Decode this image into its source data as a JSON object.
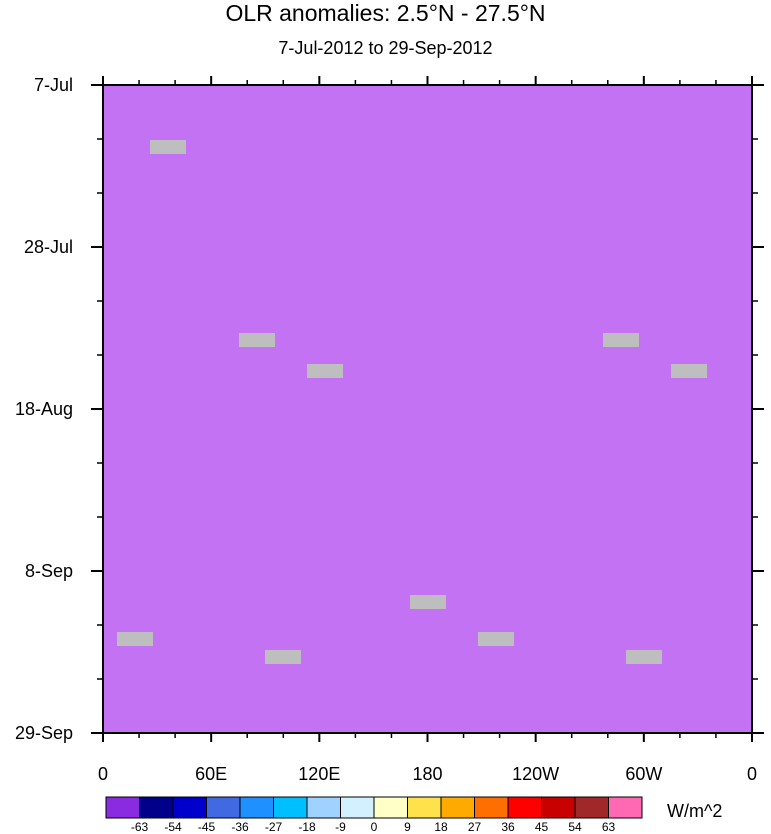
{
  "chart_data": {
    "type": "heatmap",
    "title": "OLR anomalies: 2.5°N - 27.5°N",
    "subtitle": "7-Jul-2012 to 29-Sep-2012",
    "x_tick_labels": [
      "0",
      "60E",
      "120E",
      "180",
      "120W",
      "60W",
      "0"
    ],
    "y_tick_labels": [
      "7-Jul",
      "28-Jul",
      "18-Aug",
      "8-Sep",
      "29-Sep"
    ],
    "colorbar_labels": [
      "-63",
      "-54",
      "-45",
      "-36",
      "-27",
      "-18",
      "-9",
      "0",
      "9",
      "18",
      "27",
      "36",
      "45",
      "54",
      "63"
    ],
    "colorbar_colors": [
      "#8a2be2",
      "#00008b",
      "#0000cd",
      "#4169e1",
      "#1e90ff",
      "#00bfff",
      "#a0d2ff",
      "#d2f0ff",
      "#ffffc8",
      "#ffe14b",
      "#ffaa00",
      "#ff6e00",
      "#ff0000",
      "#c80000",
      "#a02828",
      "#ff69b4"
    ],
    "units": "W/m^2",
    "missing_color": "#bebebe",
    "missing_count": 10
  }
}
